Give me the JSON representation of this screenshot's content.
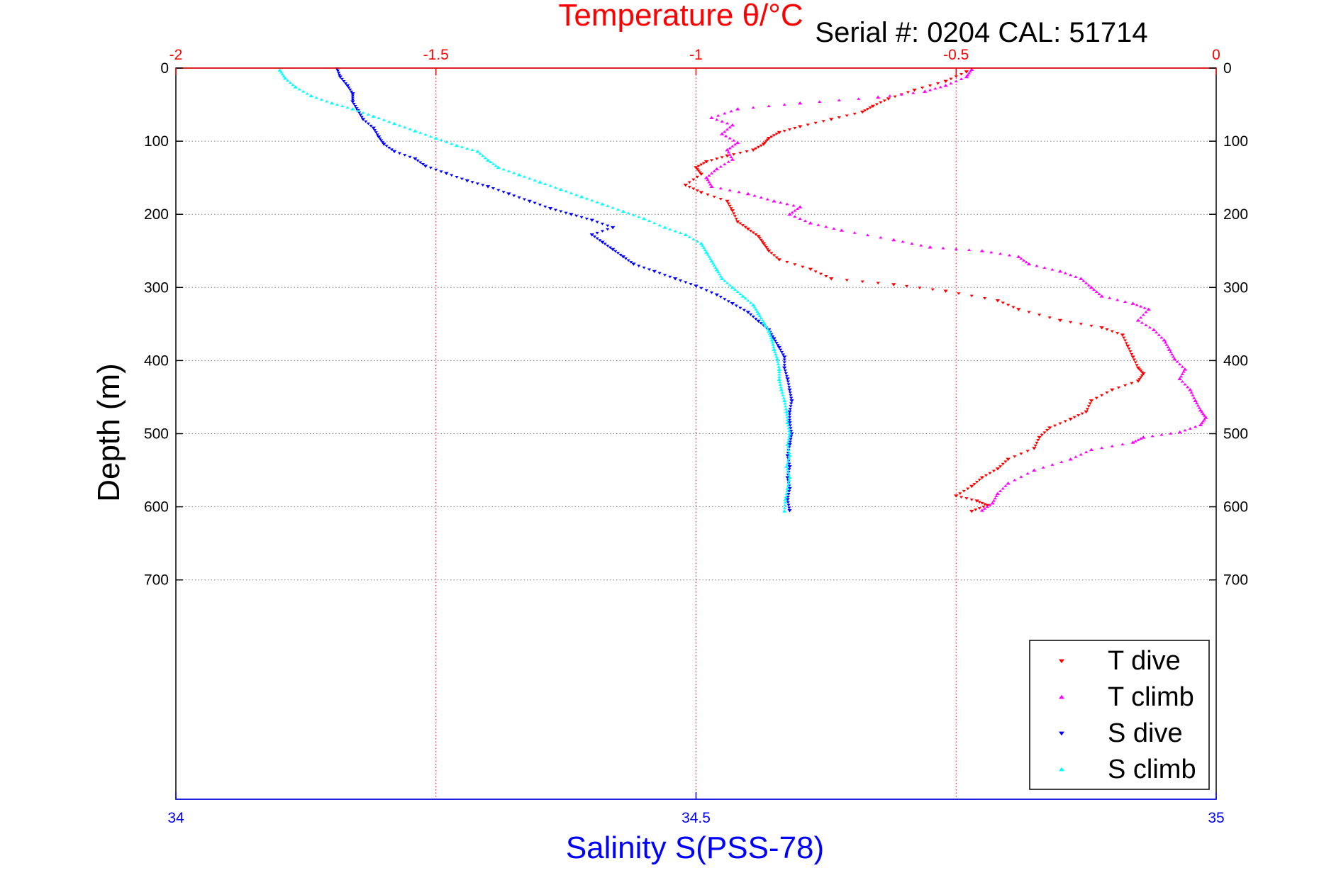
{
  "colors": {
    "temperature_axis": "#ff0000",
    "salinity_axis": "#0000ff",
    "depth_axis": "#000000",
    "grid_depth": "#7f7f7f",
    "grid_temperature": "#ff0000"
  },
  "chart_data": {
    "type": "scatter",
    "title": "Temperature θ/°C",
    "subtitle": "Serial #: 0204   CAL: 51714",
    "xlabel_top": "Temperature θ/°C",
    "xlabel_bottom": "Salinity S(PSS-78)",
    "ylabel": "Depth (m)",
    "xlim_top": [
      -2,
      0
    ],
    "xlim_bottom": [
      34,
      35
    ],
    "ylim": [
      0,
      1000
    ],
    "y_reversed": true,
    "xticks_top": [
      "-2",
      "-1.5",
      "-1",
      "-0.5",
      "0"
    ],
    "xticks_bottom": [
      "34",
      "34.5",
      "35"
    ],
    "yticks": [
      "0",
      "100",
      "200",
      "300",
      "400",
      "500",
      "600",
      "700"
    ],
    "grid": "on",
    "legend_position": "bottom-right",
    "series": [
      {
        "name": "T dive",
        "axis": "temperature",
        "color": "#ff0000",
        "marker": "triangle-down",
        "points": [
          [
            -0.48,
            5
          ],
          [
            -0.52,
            18
          ],
          [
            -0.58,
            30
          ],
          [
            -0.63,
            42
          ],
          [
            -0.66,
            52
          ],
          [
            -0.68,
            60
          ],
          [
            -0.74,
            70
          ],
          [
            -0.8,
            80
          ],
          [
            -0.84,
            88
          ],
          [
            -0.86,
            96
          ],
          [
            -0.87,
            104
          ],
          [
            -0.89,
            112
          ],
          [
            -0.94,
            120
          ],
          [
            -0.98,
            128
          ],
          [
            -1.0,
            136
          ],
          [
            -0.99,
            145
          ],
          [
            -1.02,
            160
          ],
          [
            -0.99,
            170
          ],
          [
            -0.94,
            182
          ],
          [
            -0.93,
            195
          ],
          [
            -0.92,
            210
          ],
          [
            -0.9,
            220
          ],
          [
            -0.88,
            230
          ],
          [
            -0.87,
            240
          ],
          [
            -0.86,
            250
          ],
          [
            -0.84,
            262
          ],
          [
            -0.78,
            275
          ],
          [
            -0.74,
            288
          ],
          [
            -0.62,
            296
          ],
          [
            -0.52,
            305
          ],
          [
            -0.42,
            318
          ],
          [
            -0.38,
            330
          ],
          [
            -0.3,
            345
          ],
          [
            -0.22,
            355
          ],
          [
            -0.18,
            365
          ],
          [
            -0.17,
            380
          ],
          [
            -0.16,
            395
          ],
          [
            -0.15,
            410
          ],
          [
            -0.14,
            418
          ],
          [
            -0.15,
            428
          ],
          [
            -0.2,
            440
          ],
          [
            -0.24,
            455
          ],
          [
            -0.25,
            470
          ],
          [
            -0.28,
            480
          ],
          [
            -0.32,
            492
          ],
          [
            -0.34,
            505
          ],
          [
            -0.35,
            520
          ],
          [
            -0.4,
            535
          ],
          [
            -0.42,
            548
          ],
          [
            -0.45,
            560
          ],
          [
            -0.47,
            572
          ],
          [
            -0.5,
            585
          ],
          [
            -0.46,
            592
          ],
          [
            -0.44,
            598
          ],
          [
            -0.47,
            606
          ]
        ]
      },
      {
        "name": "T climb",
        "axis": "temperature",
        "color": "#ff00ff",
        "marker": "triangle-up",
        "points": [
          [
            -0.47,
            2
          ],
          [
            -0.48,
            12
          ],
          [
            -0.52,
            24
          ],
          [
            -0.56,
            32
          ],
          [
            -0.65,
            40
          ],
          [
            -0.8,
            48
          ],
          [
            -0.92,
            56
          ],
          [
            -0.97,
            68
          ],
          [
            -0.93,
            78
          ],
          [
            -0.95,
            90
          ],
          [
            -0.92,
            102
          ],
          [
            -0.94,
            112
          ],
          [
            -0.93,
            125
          ],
          [
            -0.96,
            138
          ],
          [
            -0.98,
            150
          ],
          [
            -0.97,
            162
          ],
          [
            -0.9,
            172
          ],
          [
            -0.85,
            182
          ],
          [
            -0.8,
            190
          ],
          [
            -0.82,
            200
          ],
          [
            -0.78,
            212
          ],
          [
            -0.72,
            222
          ],
          [
            -0.62,
            235
          ],
          [
            -0.55,
            245
          ],
          [
            -0.45,
            250
          ],
          [
            -0.38,
            258
          ],
          [
            -0.36,
            268
          ],
          [
            -0.3,
            278
          ],
          [
            -0.26,
            288
          ],
          [
            -0.24,
            300
          ],
          [
            -0.22,
            312
          ],
          [
            -0.16,
            322
          ],
          [
            -0.13,
            330
          ],
          [
            -0.15,
            345
          ],
          [
            -0.12,
            358
          ],
          [
            -0.1,
            372
          ],
          [
            -0.09,
            385
          ],
          [
            -0.08,
            398
          ],
          [
            -0.06,
            412
          ],
          [
            -0.07,
            425
          ],
          [
            -0.05,
            440
          ],
          [
            -0.04,
            455
          ],
          [
            -0.03,
            468
          ],
          [
            -0.02,
            478
          ],
          [
            -0.03,
            488
          ],
          [
            -0.07,
            498
          ],
          [
            -0.14,
            505
          ],
          [
            -0.16,
            512
          ],
          [
            -0.24,
            522
          ],
          [
            -0.28,
            535
          ],
          [
            -0.35,
            550
          ],
          [
            -0.4,
            568
          ],
          [
            -0.42,
            582
          ],
          [
            -0.43,
            595
          ],
          [
            -0.45,
            605
          ]
        ]
      },
      {
        "name": "S dive",
        "axis": "salinity",
        "color": "#0000ff",
        "marker": "triangle-down",
        "points": [
          [
            34.155,
            1
          ],
          [
            34.158,
            12
          ],
          [
            34.165,
            24
          ],
          [
            34.17,
            35
          ],
          [
            34.17,
            46
          ],
          [
            34.175,
            58
          ],
          [
            34.18,
            70
          ],
          [
            34.19,
            82
          ],
          [
            34.195,
            94
          ],
          [
            34.2,
            104
          ],
          [
            34.21,
            114
          ],
          [
            34.23,
            124
          ],
          [
            34.24,
            134
          ],
          [
            34.26,
            144
          ],
          [
            34.28,
            154
          ],
          [
            34.3,
            162
          ],
          [
            34.32,
            172
          ],
          [
            34.34,
            182
          ],
          [
            34.36,
            192
          ],
          [
            34.38,
            200
          ],
          [
            34.4,
            208
          ],
          [
            34.42,
            218
          ],
          [
            34.4,
            228
          ],
          [
            34.41,
            238
          ],
          [
            34.42,
            248
          ],
          [
            34.43,
            258
          ],
          [
            34.44,
            268
          ],
          [
            34.46,
            278
          ],
          [
            34.48,
            288
          ],
          [
            34.5,
            298
          ],
          [
            34.52,
            310
          ],
          [
            34.535,
            322
          ],
          [
            34.55,
            334
          ],
          [
            34.56,
            346
          ],
          [
            34.57,
            358
          ],
          [
            34.575,
            370
          ],
          [
            34.58,
            382
          ],
          [
            34.585,
            395
          ],
          [
            34.585,
            410
          ],
          [
            34.588,
            425
          ],
          [
            34.59,
            440
          ],
          [
            34.592,
            455
          ],
          [
            34.59,
            470
          ],
          [
            34.59,
            485
          ],
          [
            34.592,
            500
          ],
          [
            34.59,
            515
          ],
          [
            34.588,
            530
          ],
          [
            34.59,
            545
          ],
          [
            34.588,
            560
          ],
          [
            34.59,
            575
          ],
          [
            34.588,
            590
          ],
          [
            34.59,
            605
          ]
        ]
      },
      {
        "name": "S climb",
        "axis": "salinity",
        "color": "#00ffff",
        "marker": "triangle-up",
        "points": [
          [
            34.1,
            3
          ],
          [
            34.105,
            14
          ],
          [
            34.115,
            26
          ],
          [
            34.13,
            38
          ],
          [
            34.15,
            48
          ],
          [
            34.17,
            56
          ],
          [
            34.19,
            66
          ],
          [
            34.21,
            76
          ],
          [
            34.23,
            86
          ],
          [
            34.25,
            96
          ],
          [
            34.27,
            106
          ],
          [
            34.29,
            114
          ],
          [
            34.3,
            126
          ],
          [
            34.31,
            136
          ],
          [
            34.33,
            146
          ],
          [
            34.35,
            156
          ],
          [
            34.37,
            166
          ],
          [
            34.39,
            176
          ],
          [
            34.41,
            186
          ],
          [
            34.43,
            196
          ],
          [
            34.45,
            206
          ],
          [
            34.47,
            218
          ],
          [
            34.49,
            228
          ],
          [
            34.505,
            240
          ],
          [
            34.51,
            252
          ],
          [
            34.515,
            264
          ],
          [
            34.52,
            276
          ],
          [
            34.525,
            288
          ],
          [
            34.535,
            300
          ],
          [
            34.545,
            312
          ],
          [
            34.555,
            324
          ],
          [
            34.56,
            336
          ],
          [
            34.565,
            348
          ],
          [
            34.57,
            360
          ],
          [
            34.573,
            372
          ],
          [
            34.575,
            385
          ],
          [
            34.578,
            398
          ],
          [
            34.58,
            412
          ],
          [
            34.58,
            426
          ],
          [
            34.582,
            440
          ],
          [
            34.585,
            455
          ],
          [
            34.587,
            470
          ],
          [
            34.588,
            485
          ],
          [
            34.59,
            500
          ],
          [
            34.588,
            515
          ],
          [
            34.59,
            530
          ],
          [
            34.587,
            545
          ],
          [
            34.59,
            560
          ],
          [
            34.588,
            575
          ],
          [
            34.586,
            590
          ],
          [
            34.585,
            606
          ]
        ]
      }
    ]
  }
}
